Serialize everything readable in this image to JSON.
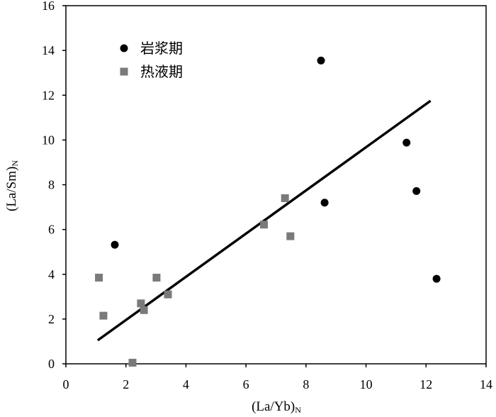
{
  "chart_data": {
    "type": "scatter",
    "xlabel": "(La/Yb)",
    "xlabel_subscript": "N",
    "ylabel": "(La/Sm)",
    "ylabel_subscript": "N",
    "xlim": [
      0,
      14
    ],
    "ylim": [
      0,
      16
    ],
    "xticks": [
      0,
      2,
      4,
      6,
      8,
      10,
      12,
      14
    ],
    "yticks": [
      0,
      2,
      4,
      6,
      8,
      10,
      12,
      14,
      16
    ],
    "grid": false,
    "legend_position": "top-left",
    "series": [
      {
        "name": "岩浆期",
        "marker": "circle",
        "color": "#000000",
        "points": [
          [
            1.63,
            5.32
          ],
          [
            8.5,
            13.55
          ],
          [
            8.62,
            7.2
          ],
          [
            11.35,
            9.88
          ],
          [
            11.68,
            7.72
          ],
          [
            12.35,
            3.8
          ]
        ]
      },
      {
        "name": "热液期",
        "marker": "square",
        "color": "#7a7a7a",
        "points": [
          [
            1.1,
            3.85
          ],
          [
            1.25,
            2.15
          ],
          [
            2.22,
            0.05
          ],
          [
            2.5,
            2.7
          ],
          [
            2.6,
            2.4
          ],
          [
            3.02,
            3.85
          ],
          [
            3.4,
            3.1
          ],
          [
            6.6,
            6.22
          ],
          [
            7.3,
            7.4
          ],
          [
            7.48,
            5.7
          ]
        ]
      }
    ],
    "trendline": {
      "color": "#000000",
      "x": [
        1.06,
        12.15
      ],
      "y": [
        1.05,
        11.75
      ]
    }
  }
}
